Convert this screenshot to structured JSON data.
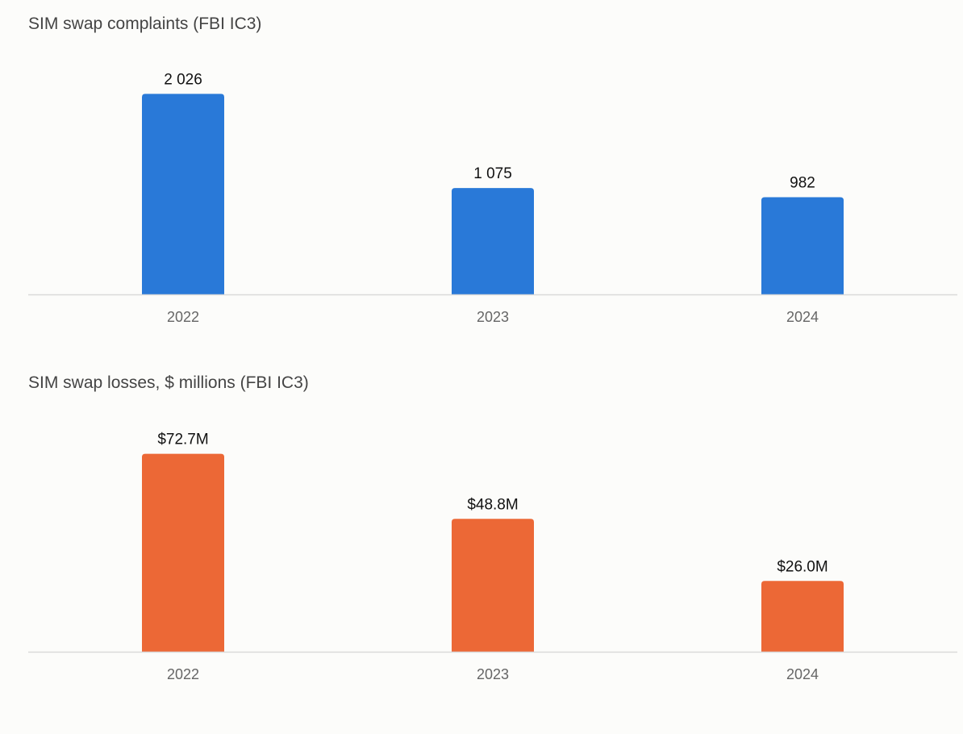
{
  "chart_data": [
    {
      "type": "bar",
      "title": "SIM swap complaints (FBI IC3)",
      "categories": [
        "2022",
        "2023",
        "2024"
      ],
      "values": [
        2026,
        1075,
        982
      ],
      "value_labels": [
        "2 026",
        "1 075",
        "982"
      ],
      "xlabel": "",
      "ylabel": "",
      "ylim": [
        0,
        2200
      ],
      "grid": false,
      "color": "#2979d8"
    },
    {
      "type": "bar",
      "title": "SIM swap losses, $ millions (FBI IC3)",
      "categories": [
        "2022",
        "2023",
        "2024"
      ],
      "values": [
        72.7,
        48.8,
        26.0
      ],
      "value_labels": [
        "$72.7M",
        "$48.8M",
        "$26.0M"
      ],
      "xlabel": "",
      "ylabel": "",
      "ylim": [
        0,
        80
      ],
      "grid": false,
      "color": "#ec6836"
    }
  ]
}
